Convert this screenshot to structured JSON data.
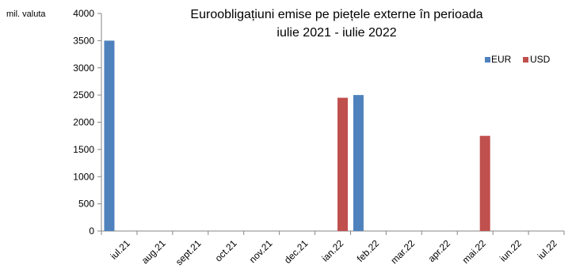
{
  "chart_data": {
    "type": "bar",
    "title_lines": [
      "Euroobligațiuni emise pe piețele externe în perioada",
      "iulie 2021 - iulie 2022"
    ],
    "ylabel": "mil. valuta",
    "xlabel": "",
    "ylim": [
      0,
      4000
    ],
    "yticks": [
      0,
      500,
      1000,
      1500,
      2000,
      2500,
      3000,
      3500,
      4000
    ],
    "categories": [
      "iul.21",
      "aug.21",
      "sept.21",
      "oct.21",
      "nov.21",
      "dec.21",
      "ian.22",
      "feb.22",
      "mar.22",
      "apr.22",
      "mai.22",
      "iun.22",
      "iul.22"
    ],
    "series": [
      {
        "name": "EUR",
        "color": "#4F81BD",
        "values": [
          3500,
          0,
          0,
          0,
          0,
          0,
          0,
          2500,
          0,
          0,
          0,
          0,
          0
        ]
      },
      {
        "name": "USD",
        "color": "#C0504D",
        "values": [
          0,
          0,
          0,
          0,
          0,
          0,
          2450,
          0,
          0,
          0,
          1750,
          0,
          0
        ]
      }
    ],
    "legend_position": "top-right",
    "grid": false
  }
}
